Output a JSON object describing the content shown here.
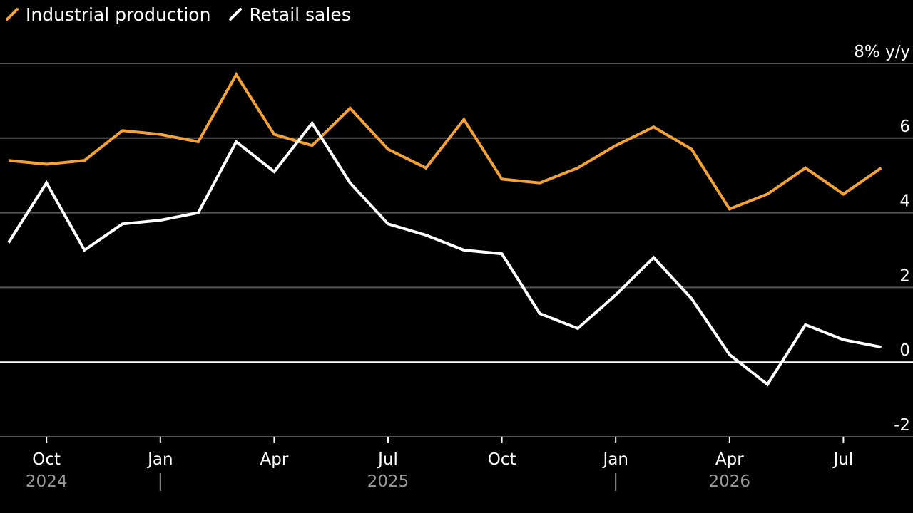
{
  "legend": {
    "items": [
      {
        "label": "Industrial production",
        "color": "#f4a236"
      },
      {
        "label": "Retail sales",
        "color": "#ffffff"
      }
    ]
  },
  "colors": {
    "background": "#000000",
    "grid": "#555555",
    "zero_line": "#ffffff",
    "tick_text": "#ffffff",
    "year_text": "#9a9a9a"
  },
  "chart_data": {
    "type": "line",
    "x": [
      "2024-09",
      "2024-10",
      "2024-11",
      "2024-12",
      "2025-01",
      "2025-02",
      "2025-03",
      "2025-04",
      "2025-05",
      "2025-06",
      "2025-07",
      "2025-08",
      "2025-09",
      "2025-10",
      "2025-11",
      "2025-12",
      "2026-01",
      "2026-02",
      "2026-03",
      "2026-04",
      "2026-05",
      "2026-06",
      "2026-07",
      "2026-08"
    ],
    "series": [
      {
        "name": "Industrial production",
        "color": "#f4a236",
        "values": [
          5.4,
          5.3,
          5.4,
          6.2,
          6.1,
          5.9,
          7.7,
          6.1,
          5.8,
          6.8,
          5.7,
          5.2,
          6.5,
          4.9,
          4.8,
          5.2,
          5.8,
          6.3,
          5.7,
          4.1,
          4.5,
          5.2,
          4.5,
          5.2
        ]
      },
      {
        "name": "Retail sales",
        "color": "#ffffff",
        "values": [
          3.2,
          4.8,
          3.0,
          3.7,
          3.8,
          4.0,
          5.9,
          5.1,
          6.4,
          4.8,
          3.7,
          3.4,
          3.0,
          2.9,
          1.3,
          0.9,
          1.8,
          2.8,
          1.7,
          0.2,
          -0.6,
          1.0,
          0.6,
          0.4
        ]
      }
    ],
    "y_unit_label": "% y/y",
    "yticks": [
      8,
      6,
      4,
      2,
      0,
      -2
    ],
    "ylim": [
      -2,
      8
    ],
    "xticks": [
      {
        "x": "2024-10",
        "label": "Oct"
      },
      {
        "x": "2025-01",
        "label": "Jan"
      },
      {
        "x": "2025-04",
        "label": "Apr"
      },
      {
        "x": "2025-07",
        "label": "Jul"
      },
      {
        "x": "2025-10",
        "label": "Oct"
      },
      {
        "x": "2026-01",
        "label": "Jan"
      },
      {
        "x": "2026-04",
        "label": "Apr"
      },
      {
        "x": "2026-07",
        "label": "Jul"
      }
    ],
    "year_labels": [
      {
        "x": "2024-10",
        "label": "2024"
      },
      {
        "x": "2025-07",
        "label": "2025"
      },
      {
        "x": "2026-04",
        "label": "2026"
      }
    ],
    "year_separators": [
      "2025-01",
      "2026-01"
    ],
    "grid": true,
    "legend_position": "top-left"
  }
}
